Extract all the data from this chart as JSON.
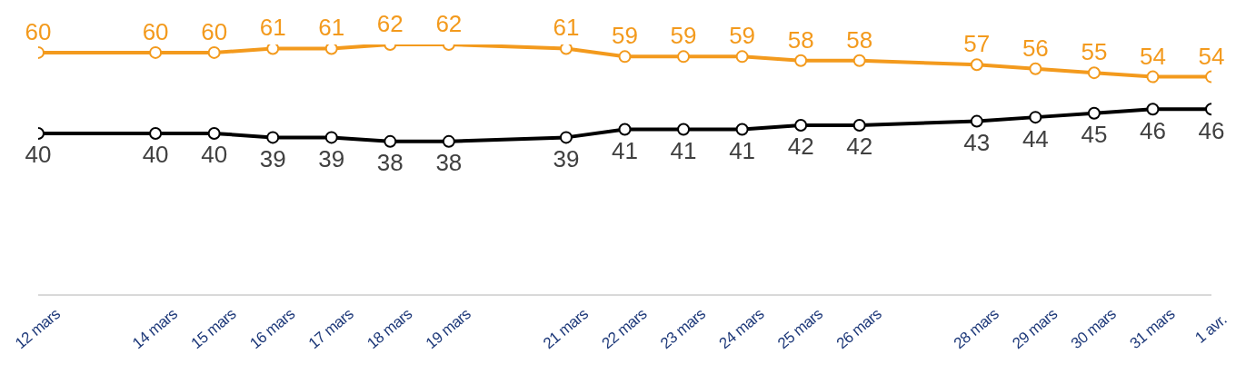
{
  "chart_data": {
    "type": "line",
    "x": [
      "--03-12",
      "--03-14",
      "--03-15",
      "--03-16",
      "--03-17",
      "--03-18",
      "--03-19",
      "--03-21",
      "--03-22",
      "--03-23",
      "--03-24",
      "--03-25",
      "--03-26",
      "--03-28",
      "--03-29",
      "--03-30",
      "--03-31",
      "--04-01"
    ],
    "series": [
      {
        "color": "#f39a1d",
        "values": [
          60,
          60,
          60,
          61,
          61,
          62,
          62,
          61,
          59,
          59,
          59,
          58,
          58,
          57,
          56,
          55,
          54,
          54
        ]
      },
      {
        "color": "#000000",
        "values": [
          40,
          40,
          40,
          39,
          39,
          38,
          38,
          39,
          41,
          41,
          41,
          42,
          42,
          43,
          44,
          45,
          46,
          46
        ]
      }
    ],
    "xlim": [
      "--03-12",
      "--04-01"
    ],
    "xticks": [
      {
        "value": "--03-12",
        "label": "12 mars"
      },
      {
        "value": "--03-14",
        "label": "14 mars"
      },
      {
        "value": "--03-15",
        "label": "15 mars"
      },
      {
        "value": "--03-16",
        "label": "16 mars"
      },
      {
        "value": "--03-17",
        "label": "17 mars"
      },
      {
        "value": "--03-18",
        "label": "18 mars"
      },
      {
        "value": "--03-19",
        "label": "19 mars"
      },
      {
        "value": "--03-21",
        "label": "21 mars"
      },
      {
        "value": "--03-22",
        "label": "22 mars"
      },
      {
        "value": "--03-23",
        "label": "23 mars"
      },
      {
        "value": "--03-24",
        "label": "24 mars"
      },
      {
        "value": "--03-25",
        "label": "25 mars"
      },
      {
        "value": "--03-26",
        "label": "26 mars"
      },
      {
        "value": "--03-28",
        "label": "28 mars"
      },
      {
        "value": "--03-29",
        "label": "29 mars"
      },
      {
        "value": "--03-30",
        "label": "30 mars"
      },
      {
        "value": "--03-31",
        "label": "31 mars"
      },
      {
        "value": "--04-01",
        "label": "1 avr."
      }
    ],
    "tick_labels": "x",
    "data_labels": true,
    "marker": "circle",
    "line_style": "solid",
    "grid": false,
    "legend": false
  }
}
